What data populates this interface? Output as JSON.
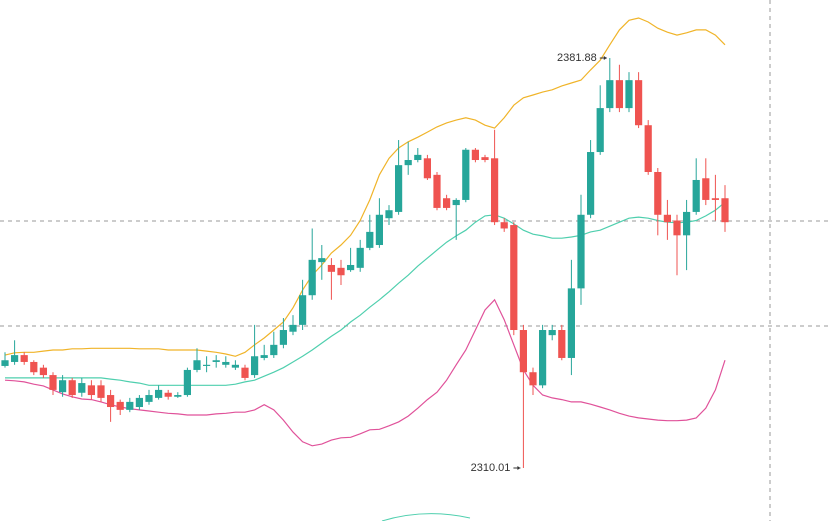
{
  "chart_data": {
    "type": "candlestick",
    "ylim": [
      2300.72,
      2392.05
    ],
    "up_color": "#26a69a",
    "down_color": "#ef5350",
    "candles": [
      [
        2327.9,
        2330.3,
        2327.6,
        2328.9
      ],
      [
        2328.6,
        2332.4,
        2328.1,
        2329.8
      ],
      [
        2329.8,
        2330.3,
        2328.1,
        2328.6
      ],
      [
        2328.6,
        2328.9,
        2326.3,
        2326.8
      ],
      [
        2327.6,
        2328.1,
        2325.8,
        2326.3
      ],
      [
        2326.3,
        2326.8,
        2322.8,
        2323.7
      ],
      [
        2323.3,
        2326.3,
        2322.5,
        2325.4
      ],
      [
        2325.4,
        2325.8,
        2322.3,
        2322.8
      ],
      [
        2323.2,
        2325.8,
        2322.5,
        2324.9
      ],
      [
        2324.5,
        2325.4,
        2322.0,
        2322.8
      ],
      [
        2324.5,
        2325.4,
        2321.6,
        2322.3
      ],
      [
        2322.8,
        2323.7,
        2318.1,
        2320.7
      ],
      [
        2321.6,
        2322.0,
        2319.3,
        2320.2
      ],
      [
        2320.2,
        2322.3,
        2319.8,
        2321.6
      ],
      [
        2320.7,
        2322.8,
        2320.2,
        2322.3
      ],
      [
        2321.6,
        2323.7,
        2321.1,
        2322.8
      ],
      [
        2322.3,
        2324.5,
        2322.0,
        2323.7
      ],
      [
        2323.2,
        2323.7,
        2322.0,
        2322.5
      ],
      [
        2322.5,
        2323.3,
        2322.3,
        2322.8
      ],
      [
        2322.8,
        2327.6,
        2322.5,
        2327.2
      ],
      [
        2327.2,
        2331.0,
        2326.8,
        2328.9
      ],
      [
        2327.9,
        2329.6,
        2326.8,
        2328.1
      ],
      [
        2328.6,
        2329.8,
        2327.6,
        2328.9
      ],
      [
        2328.1,
        2329.6,
        2327.6,
        2328.6
      ],
      [
        2327.6,
        2328.9,
        2327.2,
        2328.1
      ],
      [
        2327.6,
        2328.1,
        2325.4,
        2325.8
      ],
      [
        2326.3,
        2335.1,
        2325.8,
        2329.6
      ],
      [
        2329.3,
        2331.6,
        2328.9,
        2329.8
      ],
      [
        2329.8,
        2333.9,
        2329.3,
        2331.6
      ],
      [
        2331.6,
        2336.3,
        2331.0,
        2334.2
      ],
      [
        2333.9,
        2336.8,
        2333.3,
        2335.1
      ],
      [
        2335.1,
        2343.0,
        2334.2,
        2340.3
      ],
      [
        2340.3,
        2352.0,
        2339.5,
        2346.5
      ],
      [
        2346.1,
        2349.1,
        2343.0,
        2346.8
      ],
      [
        2345.6,
        2346.8,
        2339.5,
        2344.4
      ],
      [
        2345.1,
        2346.5,
        2342.1,
        2343.8
      ],
      [
        2344.7,
        2348.6,
        2344.4,
        2345.6
      ],
      [
        2345.1,
        2350.0,
        2344.4,
        2348.6
      ],
      [
        2348.6,
        2354.4,
        2348.2,
        2351.4
      ],
      [
        2349.1,
        2357.3,
        2348.6,
        2354.4
      ],
      [
        2353.8,
        2356.1,
        2352.6,
        2355.2
      ],
      [
        2354.9,
        2367.5,
        2354.4,
        2363.1
      ],
      [
        2363.1,
        2367.2,
        2361.4,
        2364.0
      ],
      [
        2364.0,
        2366.1,
        2363.6,
        2364.9
      ],
      [
        2364.3,
        2364.9,
        2360.5,
        2360.8
      ],
      [
        2361.4,
        2361.9,
        2355.2,
        2355.6
      ],
      [
        2357.3,
        2357.9,
        2355.2,
        2355.6
      ],
      [
        2356.1,
        2357.3,
        2350.0,
        2357.0
      ],
      [
        2357.0,
        2366.1,
        2356.6,
        2365.8
      ],
      [
        2365.8,
        2366.1,
        2363.6,
        2364.0
      ],
      [
        2364.5,
        2364.9,
        2363.6,
        2364.0
      ],
      [
        2364.3,
        2369.3,
        2352.6,
        2353.1
      ],
      [
        2353.1,
        2353.8,
        2351.4,
        2352.0
      ],
      [
        2352.6,
        2353.1,
        2333.3,
        2334.2
      ],
      [
        2334.2,
        2335.1,
        2310.01,
        2326.8
      ],
      [
        2326.8,
        2327.6,
        2322.8,
        2324.5
      ],
      [
        2324.5,
        2335.1,
        2324.0,
        2334.2
      ],
      [
        2333.3,
        2335.1,
        2332.4,
        2334.2
      ],
      [
        2334.2,
        2335.1,
        2328.9,
        2329.3
      ],
      [
        2329.3,
        2346.5,
        2326.3,
        2341.5
      ],
      [
        2341.5,
        2357.9,
        2338.6,
        2354.4
      ],
      [
        2354.4,
        2367.5,
        2353.8,
        2365.4
      ],
      [
        2365.4,
        2377.1,
        2364.9,
        2373.1
      ],
      [
        2373.1,
        2381.88,
        2372.4,
        2378.0
      ],
      [
        2378.0,
        2380.7,
        2372.4,
        2373.1
      ],
      [
        2373.1,
        2379.4,
        2372.4,
        2378.0
      ],
      [
        2378.0,
        2379.4,
        2369.6,
        2370.1
      ],
      [
        2370.1,
        2371.0,
        2361.4,
        2361.9
      ],
      [
        2361.9,
        2362.6,
        2350.8,
        2354.4
      ],
      [
        2354.4,
        2357.0,
        2350.0,
        2353.1
      ],
      [
        2353.4,
        2354.4,
        2343.8,
        2350.8
      ],
      [
        2350.8,
        2357.0,
        2344.7,
        2354.9
      ],
      [
        2354.9,
        2364.3,
        2354.4,
        2360.5
      ],
      [
        2360.8,
        2364.3,
        2356.1,
        2357.0
      ],
      [
        2357.3,
        2361.4,
        2353.4,
        2357.0
      ],
      [
        2357.3,
        2359.6,
        2351.4,
        2353.1
      ]
    ],
    "bands": [
      {
        "color": "#f0b429",
        "values": [
          2329.8,
          2330.2,
          2330.3,
          2330.3,
          2330.5,
          2330.7,
          2330.7,
          2330.9,
          2330.9,
          2331.0,
          2331.0,
          2331.0,
          2331.0,
          2331.0,
          2330.9,
          2330.9,
          2330.9,
          2330.7,
          2330.7,
          2330.7,
          2330.7,
          2330.5,
          2330.3,
          2330.0,
          2329.6,
          2330.3,
          2331.6,
          2332.8,
          2334.2,
          2335.6,
          2338.1,
          2341.2,
          2343.8,
          2345.6,
          2347.7,
          2349.1,
          2350.8,
          2353.4,
          2357.0,
          2361.4,
          2364.3,
          2366.1,
          2367.2,
          2368.0,
          2368.9,
          2369.8,
          2370.5,
          2371.0,
          2371.4,
          2371.0,
          2370.1,
          2369.6,
          2371.4,
          2373.6,
          2374.9,
          2375.4,
          2375.9,
          2376.3,
          2377.0,
          2377.5,
          2378.0,
          2379.8,
          2381.5,
          2384.2,
          2386.8,
          2388.5,
          2388.9,
          2388.2,
          2387.1,
          2386.4,
          2385.9,
          2386.3,
          2386.8,
          2386.8,
          2385.9,
          2384.2
        ]
      },
      {
        "color": "#4fcfae",
        "values": [
          2325.8,
          2325.8,
          2325.8,
          2325.8,
          2325.8,
          2325.8,
          2325.8,
          2325.8,
          2325.8,
          2325.8,
          2325.8,
          2325.6,
          2325.4,
          2325.1,
          2324.9,
          2324.5,
          2324.5,
          2324.5,
          2324.5,
          2324.5,
          2324.5,
          2324.5,
          2324.5,
          2324.5,
          2324.7,
          2325.1,
          2325.4,
          2326.1,
          2326.8,
          2327.6,
          2328.6,
          2329.6,
          2330.7,
          2331.9,
          2333.1,
          2334.2,
          2335.6,
          2336.8,
          2338.2,
          2339.5,
          2340.9,
          2342.4,
          2343.8,
          2345.4,
          2346.8,
          2348.2,
          2349.6,
          2350.7,
          2351.7,
          2353.1,
          2354.2,
          2354.4,
          2353.8,
          2352.8,
          2351.7,
          2351.0,
          2350.7,
          2350.3,
          2350.3,
          2350.5,
          2350.8,
          2351.4,
          2351.7,
          2352.4,
          2353.1,
          2353.8,
          2354.0,
          2353.8,
          2353.4,
          2353.1,
          2353.0,
          2353.1,
          2353.4,
          2354.2,
          2355.2,
          2356.6
        ]
      },
      {
        "color": "#e0529a",
        "values": [
          2325.4,
          2325.3,
          2325.1,
          2324.7,
          2324.4,
          2323.7,
          2323.0,
          2322.5,
          2322.1,
          2322.0,
          2321.6,
          2321.1,
          2320.7,
          2320.4,
          2320.2,
          2320.0,
          2319.8,
          2319.6,
          2319.5,
          2319.3,
          2319.3,
          2319.3,
          2319.5,
          2319.6,
          2319.8,
          2319.8,
          2320.2,
          2321.1,
          2320.2,
          2318.4,
          2316.3,
          2314.6,
          2313.9,
          2314.2,
          2314.9,
          2315.3,
          2315.4,
          2316.0,
          2316.7,
          2316.8,
          2317.4,
          2318.1,
          2319.1,
          2320.5,
          2322.0,
          2323.3,
          2325.4,
          2328.1,
          2330.7,
          2334.2,
          2337.7,
          2339.5,
          2336.0,
          2331.6,
          2327.2,
          2324.5,
          2322.8,
          2322.3,
          2322.0,
          2321.6,
          2321.6,
          2321.2,
          2320.7,
          2320.2,
          2319.6,
          2319.1,
          2318.8,
          2318.6,
          2318.4,
          2318.3,
          2318.3,
          2318.4,
          2318.8,
          2320.5,
          2323.7,
          2328.9
        ]
      }
    ],
    "high_label": "2381.88",
    "low_label": "2310.01"
  }
}
